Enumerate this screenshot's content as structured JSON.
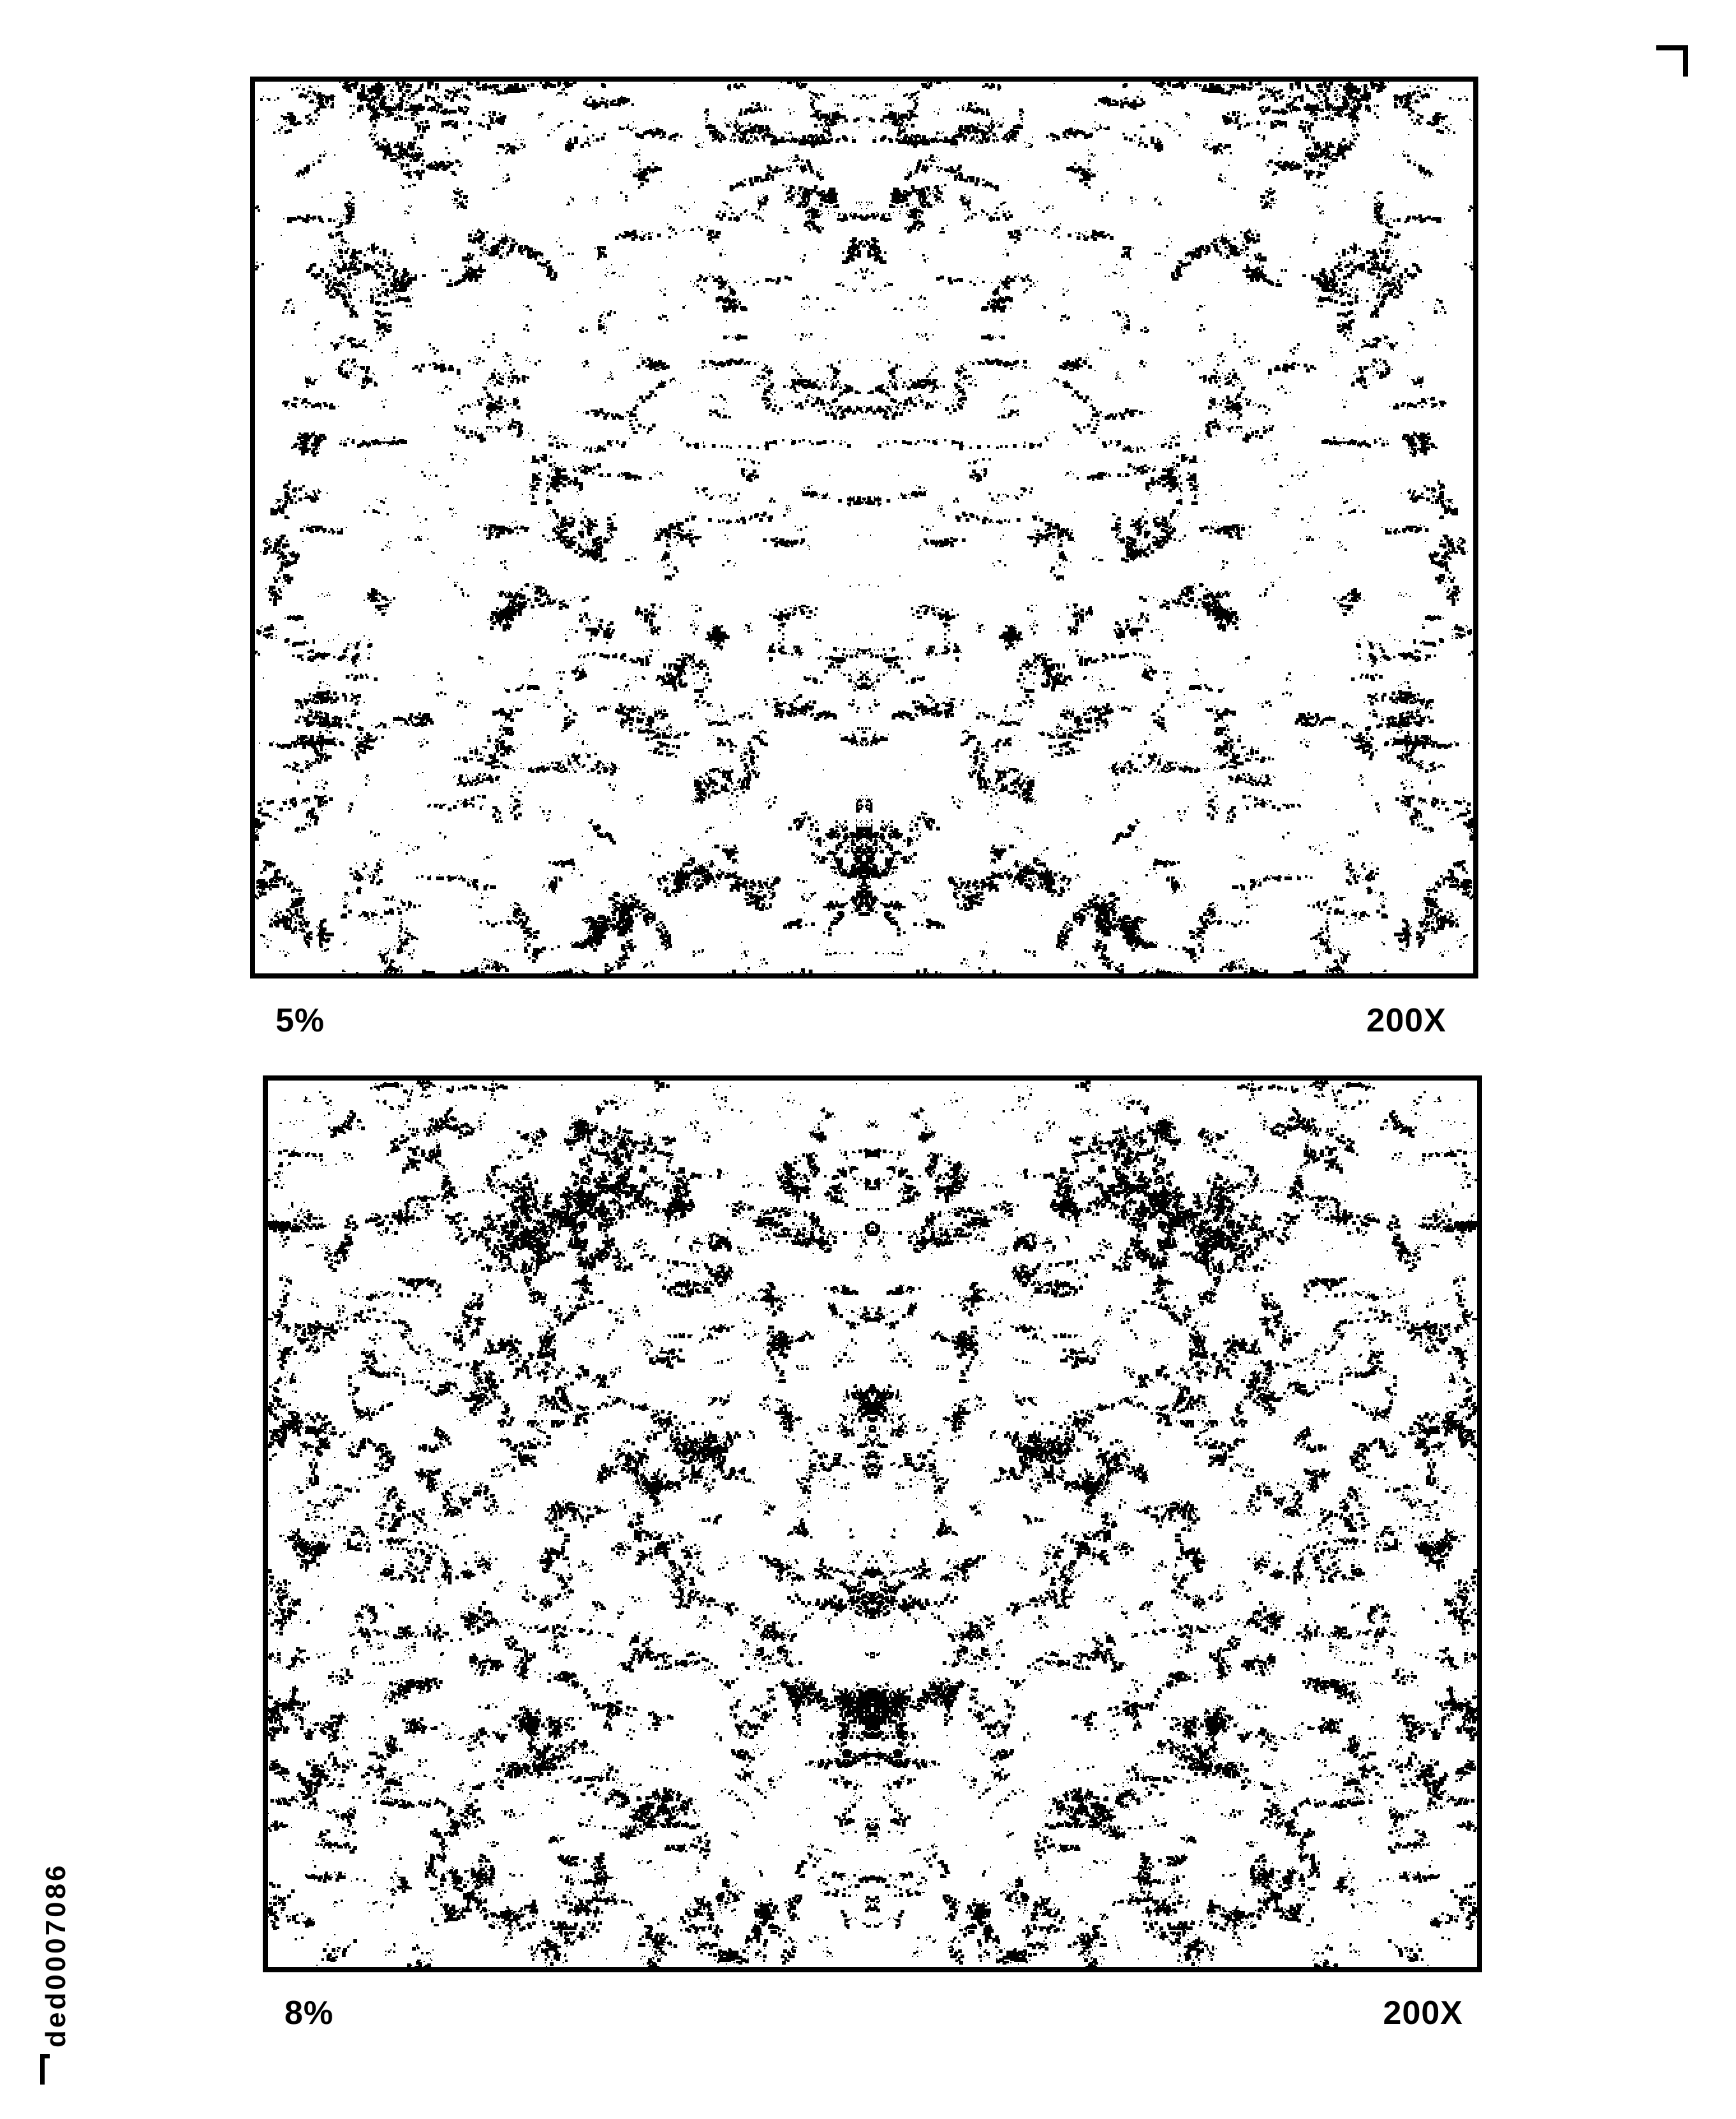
{
  "document": {
    "id_label": "ded0007086",
    "background_color": "#ffffff",
    "ink_color": "#000000"
  },
  "figures": [
    {
      "name": "porosity-micrograph-top",
      "left_label": "5%",
      "right_label": "200X",
      "porosity_percent": 5,
      "magnification": "200X",
      "texture": "binary-speckle-micrograph-mirrored"
    },
    {
      "name": "porosity-micrograph-bottom",
      "left_label": "8%",
      "right_label": "200X",
      "porosity_percent": 8,
      "magnification": "200X",
      "texture": "binary-speckle-micrograph-mirrored"
    }
  ],
  "icons": {
    "top_right_mark": "crop-corner-mark",
    "doc_id_mark": "corner-bracket-icon"
  }
}
